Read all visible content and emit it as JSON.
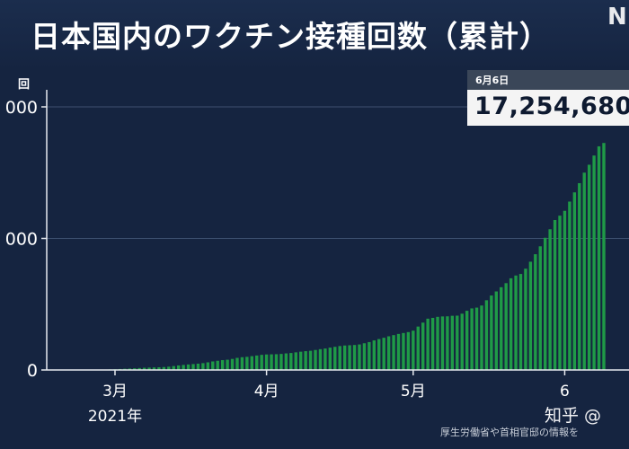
{
  "header": {
    "title": "日本国内のワクチン接種回数（累計）",
    "logo": "N"
  },
  "callout": {
    "date": "6月6日",
    "value": "17,254,680",
    "unit": "回"
  },
  "footer": {
    "source": "厚生労働省や首相官邸の情報を",
    "watermark": "知乎 @"
  },
  "colors": {
    "background": "#152440",
    "bar": "#1f9a47",
    "gridline": "#3e5170",
    "axis": "#e6e9ef",
    "text": "#ffffff"
  },
  "chart_data": {
    "type": "bar",
    "title": "日本国内のワクチン接種回数（累計）",
    "ylabel": "回",
    "ylim": [
      0,
      20000000
    ],
    "ytick_values": [
      0,
      10000000,
      20000000
    ],
    "ytick_labels": [
      "0",
      "000",
      "000"
    ],
    "xtick_labels": [
      {
        "month": 3,
        "label": "3月",
        "sublabel": "2021年"
      },
      {
        "month": 4,
        "label": "4月",
        "sublabel": ""
      },
      {
        "month": 5,
        "label": "5月",
        "sublabel": ""
      },
      {
        "month": 6,
        "label": "6",
        "sublabel": ""
      }
    ],
    "grid": true,
    "x_start": "2021-02-17",
    "values": [
      0,
      0,
      0,
      0,
      0,
      0,
      0,
      0,
      0,
      18000,
      35000,
      46000,
      58000,
      73000,
      90000,
      107000,
      125000,
      146000,
      167000,
      181000,
      193000,
      205000,
      221000,
      249000,
      296000,
      345000,
      383000,
      418000,
      450000,
      480000,
      520000,
      580000,
      650000,
      700000,
      750000,
      780000,
      840000,
      920000,
      970000,
      1000000,
      1050000,
      1100000,
      1150000,
      1180000,
      1190000,
      1200000,
      1220000,
      1260000,
      1290000,
      1340000,
      1390000,
      1430000,
      1460000,
      1520000,
      1580000,
      1630000,
      1700000,
      1760000,
      1820000,
      1860000,
      1880000,
      1900000,
      1940000,
      2030000,
      2120000,
      2250000,
      2350000,
      2450000,
      2560000,
      2650000,
      2740000,
      2810000,
      2880000,
      2990000,
      3300000,
      3600000,
      3900000,
      3960000,
      4040000,
      4070000,
      4080000,
      4120000,
      4130000,
      4280000,
      4500000,
      4680000,
      4740000,
      4900000,
      5300000,
      5660000,
      5970000,
      6290000,
      6600000,
      6970000,
      7180000,
      7300000,
      7700000,
      8230000,
      8800000,
      9400000,
      10050000,
      10700000,
      11400000,
      11730000,
      12100000,
      12800000,
      13500000,
      14200000,
      15000000,
      15600000,
      16300000,
      17000000,
      17254680
    ]
  }
}
